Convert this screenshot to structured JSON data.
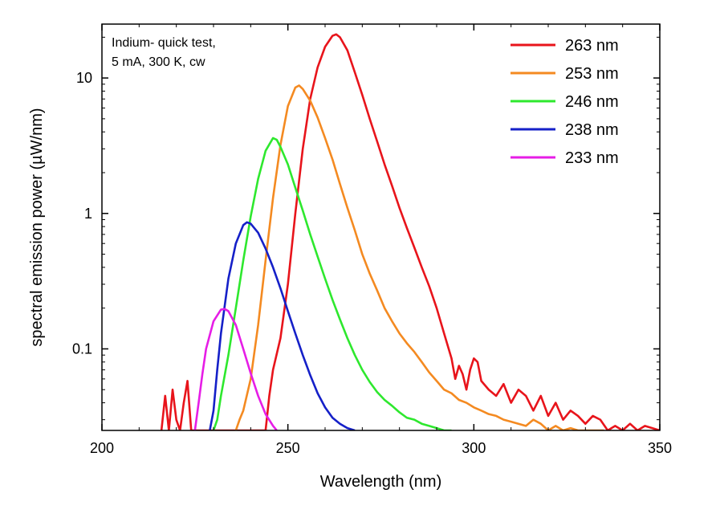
{
  "chart_data": {
    "type": "line",
    "title": "",
    "xlabel": "Wavelength (nm)",
    "ylabel": "spectral emission power (µW/nm)",
    "xlim": [
      200,
      350
    ],
    "ylim": [
      0.025,
      25
    ],
    "yscale": "log",
    "grid": false,
    "legend_position": "top-right",
    "x_ticks": [
      200,
      250,
      300,
      350
    ],
    "x_tick_labels": [
      "200",
      "250",
      "300",
      "350"
    ],
    "y_ticks": [
      0.1,
      1,
      10
    ],
    "y_tick_labels": [
      "0.1",
      "1",
      "10"
    ],
    "annotation": [
      "Indium- quick test,",
      "5 mA, 300 K, cw"
    ],
    "series": [
      {
        "name": "263 nm",
        "color": "#e8141b",
        "points": [
          [
            216,
            0.025
          ],
          [
            217,
            0.045
          ],
          [
            218,
            0.025
          ],
          [
            219,
            0.05
          ],
          [
            220,
            0.03
          ],
          [
            221,
            0.025
          ],
          [
            222,
            0.04
          ],
          [
            223,
            0.058
          ],
          [
            224,
            0.025
          ],
          [
            244,
            0.025
          ],
          [
            245,
            0.045
          ],
          [
            246,
            0.07
          ],
          [
            248,
            0.12
          ],
          [
            250,
            0.3
          ],
          [
            252,
            1.0
          ],
          [
            254,
            3.0
          ],
          [
            256,
            7.0
          ],
          [
            258,
            12.0
          ],
          [
            260,
            17.0
          ],
          [
            262,
            20.5
          ],
          [
            263,
            21.0
          ],
          [
            264,
            20.0
          ],
          [
            266,
            16.0
          ],
          [
            268,
            11.0
          ],
          [
            270,
            7.5
          ],
          [
            272,
            5.0
          ],
          [
            274,
            3.4
          ],
          [
            276,
            2.3
          ],
          [
            278,
            1.6
          ],
          [
            280,
            1.1
          ],
          [
            282,
            0.78
          ],
          [
            284,
            0.56
          ],
          [
            286,
            0.4
          ],
          [
            288,
            0.29
          ],
          [
            290,
            0.2
          ],
          [
            292,
            0.13
          ],
          [
            294,
            0.085
          ],
          [
            295,
            0.06
          ],
          [
            296,
            0.075
          ],
          [
            297,
            0.065
          ],
          [
            298,
            0.05
          ],
          [
            299,
            0.07
          ],
          [
            300,
            0.085
          ],
          [
            301,
            0.08
          ],
          [
            302,
            0.058
          ],
          [
            304,
            0.05
          ],
          [
            306,
            0.045
          ],
          [
            308,
            0.055
          ],
          [
            310,
            0.04
          ],
          [
            312,
            0.05
          ],
          [
            314,
            0.045
          ],
          [
            316,
            0.035
          ],
          [
            318,
            0.045
          ],
          [
            320,
            0.032
          ],
          [
            322,
            0.04
          ],
          [
            324,
            0.03
          ],
          [
            326,
            0.035
          ],
          [
            328,
            0.032
          ],
          [
            330,
            0.028
          ],
          [
            332,
            0.032
          ],
          [
            334,
            0.03
          ],
          [
            336,
            0.025
          ],
          [
            338,
            0.027
          ],
          [
            340,
            0.025
          ],
          [
            342,
            0.028
          ],
          [
            344,
            0.025
          ],
          [
            346,
            0.027
          ],
          [
            350,
            0.025
          ]
        ]
      },
      {
        "name": "253 nm",
        "color": "#f48a21",
        "points": [
          [
            236,
            0.025
          ],
          [
            237,
            0.03
          ],
          [
            238,
            0.035
          ],
          [
            240,
            0.06
          ],
          [
            242,
            0.15
          ],
          [
            244,
            0.45
          ],
          [
            246,
            1.3
          ],
          [
            248,
            3.2
          ],
          [
            250,
            6.2
          ],
          [
            252,
            8.5
          ],
          [
            253,
            8.8
          ],
          [
            254,
            8.3
          ],
          [
            256,
            6.8
          ],
          [
            258,
            5.1
          ],
          [
            260,
            3.6
          ],
          [
            262,
            2.5
          ],
          [
            264,
            1.65
          ],
          [
            266,
            1.1
          ],
          [
            268,
            0.75
          ],
          [
            270,
            0.5
          ],
          [
            272,
            0.36
          ],
          [
            274,
            0.27
          ],
          [
            276,
            0.2
          ],
          [
            278,
            0.16
          ],
          [
            280,
            0.13
          ],
          [
            282,
            0.11
          ],
          [
            284,
            0.095
          ],
          [
            286,
            0.08
          ],
          [
            288,
            0.067
          ],
          [
            290,
            0.058
          ],
          [
            292,
            0.05
          ],
          [
            294,
            0.047
          ],
          [
            296,
            0.042
          ],
          [
            298,
            0.04
          ],
          [
            300,
            0.037
          ],
          [
            302,
            0.035
          ],
          [
            304,
            0.033
          ],
          [
            306,
            0.032
          ],
          [
            308,
            0.03
          ],
          [
            310,
            0.029
          ],
          [
            312,
            0.028
          ],
          [
            314,
            0.027
          ],
          [
            316,
            0.03
          ],
          [
            318,
            0.028
          ],
          [
            320,
            0.025
          ],
          [
            322,
            0.027
          ],
          [
            324,
            0.025
          ],
          [
            326,
            0.026
          ],
          [
            328,
            0.025
          ],
          [
            330,
            0.025
          ],
          [
            335,
            0.025
          ]
        ]
      },
      {
        "name": "246 nm",
        "color": "#2ee82e",
        "points": [
          [
            230,
            0.025
          ],
          [
            231,
            0.03
          ],
          [
            232,
            0.045
          ],
          [
            234,
            0.09
          ],
          [
            236,
            0.2
          ],
          [
            238,
            0.45
          ],
          [
            240,
            0.95
          ],
          [
            242,
            1.8
          ],
          [
            244,
            2.9
          ],
          [
            246,
            3.6
          ],
          [
            247,
            3.5
          ],
          [
            248,
            3.1
          ],
          [
            250,
            2.3
          ],
          [
            252,
            1.55
          ],
          [
            254,
            1.05
          ],
          [
            256,
            0.7
          ],
          [
            258,
            0.48
          ],
          [
            260,
            0.33
          ],
          [
            262,
            0.23
          ],
          [
            264,
            0.165
          ],
          [
            266,
            0.12
          ],
          [
            268,
            0.09
          ],
          [
            270,
            0.07
          ],
          [
            272,
            0.057
          ],
          [
            274,
            0.048
          ],
          [
            276,
            0.042
          ],
          [
            278,
            0.038
          ],
          [
            280,
            0.034
          ],
          [
            282,
            0.031
          ],
          [
            284,
            0.03
          ],
          [
            286,
            0.028
          ],
          [
            288,
            0.027
          ],
          [
            290,
            0.026
          ],
          [
            292,
            0.025
          ],
          [
            294,
            0.025
          ]
        ]
      },
      {
        "name": "238 nm",
        "color": "#1520c8",
        "points": [
          [
            229,
            0.025
          ],
          [
            230,
            0.035
          ],
          [
            231,
            0.07
          ],
          [
            232,
            0.13
          ],
          [
            234,
            0.33
          ],
          [
            236,
            0.6
          ],
          [
            238,
            0.82
          ],
          [
            239,
            0.86
          ],
          [
            240,
            0.84
          ],
          [
            242,
            0.72
          ],
          [
            244,
            0.55
          ],
          [
            246,
            0.4
          ],
          [
            248,
            0.28
          ],
          [
            250,
            0.19
          ],
          [
            252,
            0.13
          ],
          [
            254,
            0.09
          ],
          [
            256,
            0.064
          ],
          [
            258,
            0.047
          ],
          [
            260,
            0.037
          ],
          [
            262,
            0.031
          ],
          [
            264,
            0.028
          ],
          [
            266,
            0.026
          ],
          [
            268,
            0.025
          ]
        ]
      },
      {
        "name": "233 nm",
        "color": "#e61de6",
        "points": [
          [
            225,
            0.025
          ],
          [
            226,
            0.04
          ],
          [
            227,
            0.065
          ],
          [
            228,
            0.1
          ],
          [
            230,
            0.16
          ],
          [
            232,
            0.195
          ],
          [
            233,
            0.197
          ],
          [
            234,
            0.19
          ],
          [
            236,
            0.15
          ],
          [
            238,
            0.1
          ],
          [
            240,
            0.066
          ],
          [
            242,
            0.045
          ],
          [
            244,
            0.033
          ],
          [
            246,
            0.027
          ],
          [
            247,
            0.025
          ]
        ]
      }
    ]
  }
}
